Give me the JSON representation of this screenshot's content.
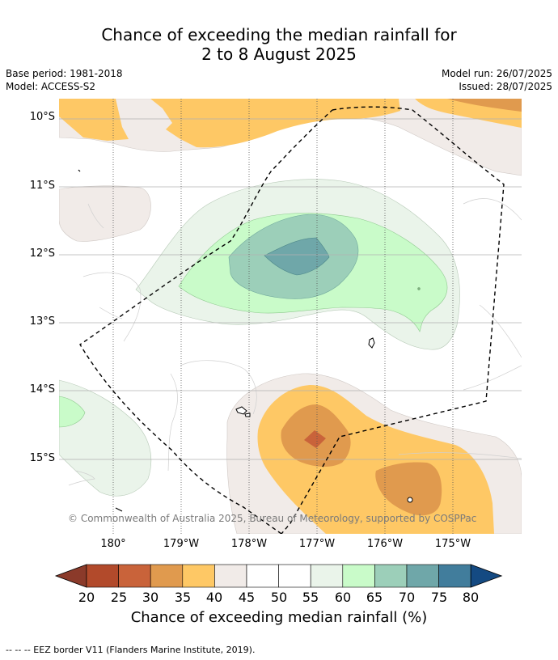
{
  "title_line1": "Chance of exceeding the median rainfall for",
  "title_line2": "2 to 8 August 2025",
  "base_period": "Base period: 1981-2018",
  "model": "Model: ACCESS-S2",
  "model_run": "Model run: 26/07/2025",
  "issued": "Issued: 28/07/2025",
  "lat_labels": [
    "10°S",
    "11°S",
    "12°S",
    "13°S",
    "14°S",
    "15°S"
  ],
  "lon_labels": [
    "180°",
    "179°W",
    "178°W",
    "177°W",
    "176°W",
    "175°W"
  ],
  "copyright": "© Commonwealth of Australia 2025, Bureau of Meteorology, supported by COSPPac",
  "colorbar": {
    "ticks": [
      "20",
      "25",
      "30",
      "35",
      "40",
      "45",
      "50",
      "55",
      "60",
      "65",
      "70",
      "75",
      "80"
    ],
    "colors": [
      "#b24a2b",
      "#c9633a",
      "#e09a4e",
      "#fec865",
      "#f1ebe8",
      "#ffffff",
      "#ffffff",
      "#eaf4ea",
      "#c9fbc9",
      "#9ccfb9",
      "#6fa7a9",
      "#417d9c"
    ],
    "under_color": "#8b3a2a",
    "over_color": "#144a82",
    "label": "Chance of exceeding median rainfall (%)"
  },
  "footer": "--  --  -- EEZ border V11 (Flanders Marine Institute, 2019)."
}
